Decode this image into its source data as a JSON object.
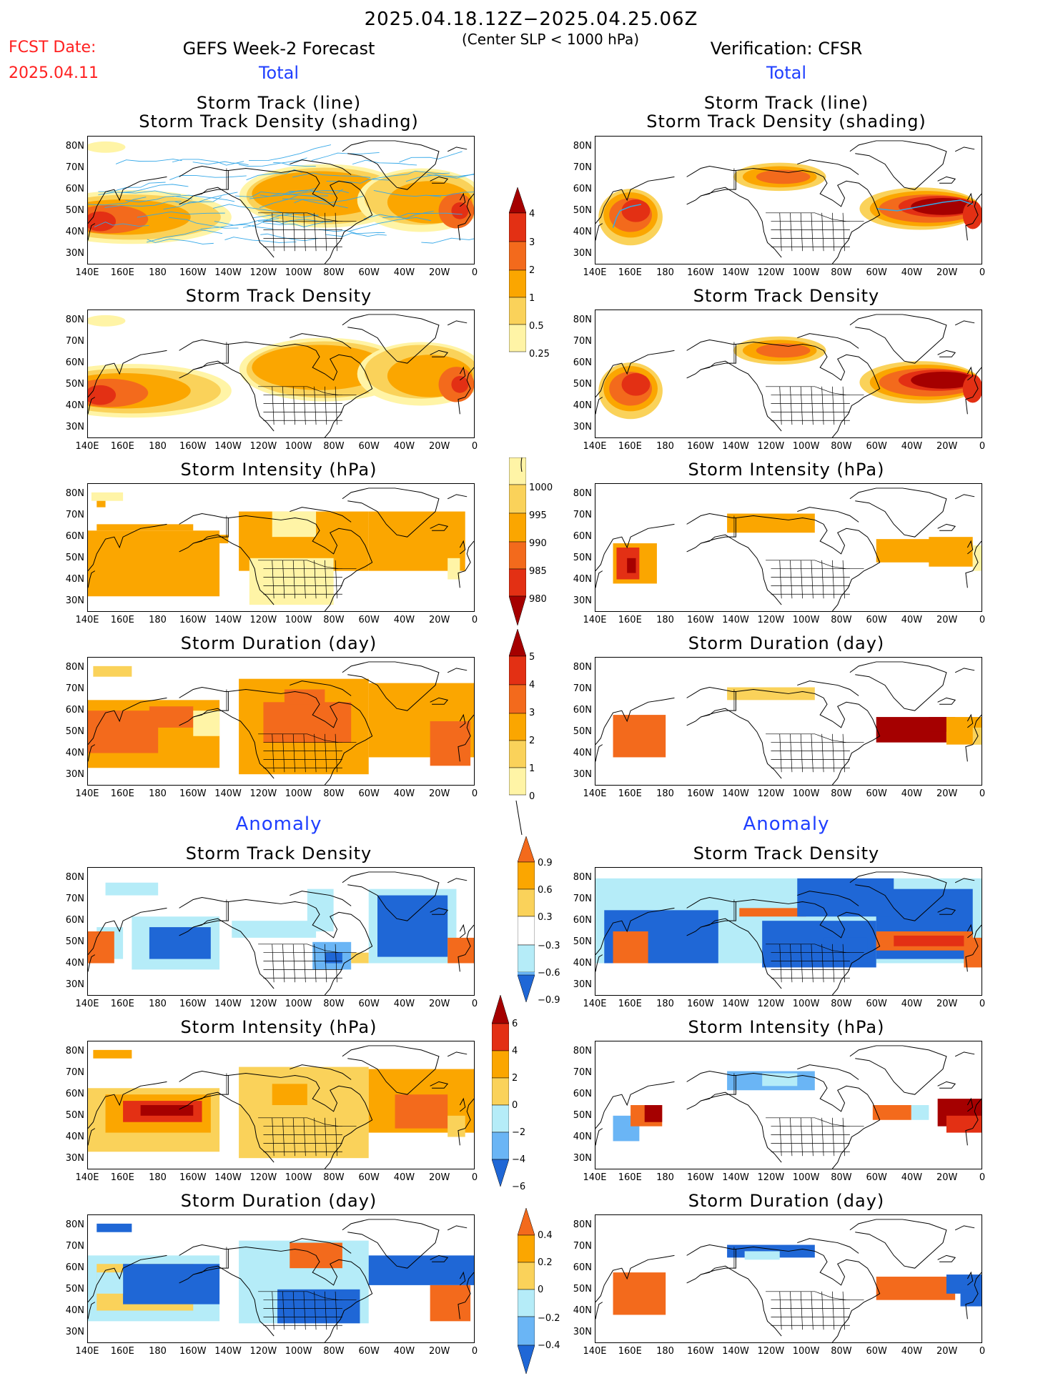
{
  "header": {
    "period": "2025.04.18.12Z−2025.04.25.06Z",
    "condition": "(Center SLP < 1000 hPa)",
    "fcst_label": "FCST Date:",
    "fcst_date": "2025.04.11",
    "left_title": "GEFS Week-2 Forecast",
    "right_title": "Verification: CFSR",
    "left_sub": "Total",
    "right_sub": "Total",
    "anomaly_left": "Anomaly",
    "anomaly_right": "Anomaly"
  },
  "panel_titles": {
    "track_l1": "Storm Track (line)",
    "track_l2": "Storm Track Density (shading)",
    "density": "Storm Track Density",
    "intensity": "Storm Intensity (hPa)",
    "duration": "Storm Duration (day)"
  },
  "axes": {
    "x_ticks": [
      "140E",
      "160E",
      "180",
      "160W",
      "140W",
      "120W",
      "100W",
      "80W",
      "60W",
      "40W",
      "20W",
      "0"
    ],
    "y_ticks": [
      "80N",
      "70N",
      "60N",
      "50N",
      "40N",
      "30N"
    ]
  },
  "colorbars": {
    "density_total": [
      "4",
      "3",
      "2",
      "1",
      "0.5",
      "0.25"
    ],
    "intensity_total": [
      "1000",
      "995",
      "990",
      "985",
      "980"
    ],
    "duration_total": [
      "5",
      "4",
      "3",
      "2",
      "1",
      "0"
    ],
    "density_anom": [
      "0.9",
      "0.6",
      "0.3",
      "−0.3",
      "−0.6",
      "−0.9"
    ],
    "intensity_anom": [
      "6",
      "4",
      "2",
      "0",
      "−2",
      "−4",
      "−6"
    ],
    "duration_anom": [
      "0.4",
      "0.2",
      "0",
      "−0.2",
      "−0.4"
    ]
  },
  "colors": {
    "light_yellow": "#fff4a6",
    "yellow": "#fad25a",
    "orange": "#fba600",
    "dark_orange": "#f36a1c",
    "red": "#e33014",
    "dark_red": "#a50000",
    "light_blue": "#b5ecf8",
    "blue": "#6ab5f5",
    "dark_blue": "#1f67d6",
    "track_line": "#35a8e8",
    "title_red": "#ff2020",
    "label_blue": "#1f3fff"
  }
}
